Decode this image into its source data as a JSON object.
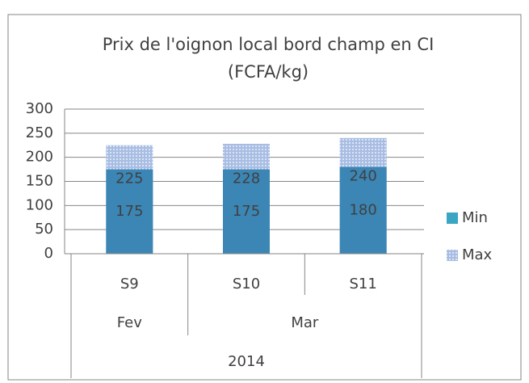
{
  "chart_data": {
    "type": "bar",
    "title": [
      "Prix de l'oignon local bord champ en CI",
      "(FCFA/kg)"
    ],
    "categories": [
      "S9",
      "S10",
      "S11"
    ],
    "months": [
      "Fev",
      "Mar",
      null
    ],
    "year": "2014",
    "series": [
      {
        "name": "Min",
        "color": "#3b86b5",
        "legend_color": "#3aa6c4",
        "values": [
          175,
          175,
          180
        ]
      },
      {
        "name": "Max",
        "color": "#a8bde3",
        "values": [
          225,
          228,
          240
        ]
      }
    ],
    "ylim": [
      0,
      300
    ],
    "yticks": [
      0,
      50,
      100,
      150,
      200,
      250,
      300
    ],
    "grid": true,
    "legend": "right"
  }
}
